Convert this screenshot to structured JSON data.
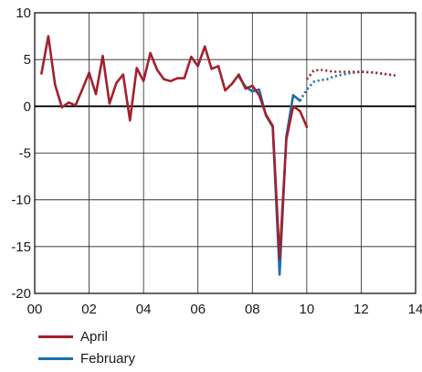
{
  "chart_data": {
    "type": "line",
    "title": "",
    "xlabel": "",
    "ylabel": "",
    "xlim": [
      0,
      14
    ],
    "ylim": [
      -20,
      10
    ],
    "x_ticks": [
      0,
      2,
      4,
      6,
      8,
      10,
      12,
      14
    ],
    "x_tick_labels": [
      "00",
      "02",
      "04",
      "06",
      "08",
      "10",
      "12",
      "14"
    ],
    "y_ticks": [
      10,
      5,
      0,
      -5,
      -10,
      -15,
      -20
    ],
    "y_tick_labels": [
      "10",
      "5",
      "0",
      "-5",
      "-10",
      "-15",
      "-20"
    ],
    "grid": true,
    "legend_position": "bottom-left",
    "series": [
      {
        "name": "April",
        "color": "#a3202d",
        "actual": {
          "x": [
            0.25,
            0.5,
            0.75,
            1.0,
            1.25,
            1.5,
            1.75,
            2.0,
            2.25,
            2.5,
            2.75,
            3.0,
            3.25,
            3.5,
            3.75,
            4.0,
            4.25,
            4.5,
            4.75,
            5.0,
            5.25,
            5.5,
            5.75,
            6.0,
            6.25,
            6.5,
            6.75,
            7.0,
            7.25,
            7.5,
            7.75,
            8.0,
            8.25,
            8.5,
            8.75,
            9.0,
            9.25,
            9.5,
            9.75,
            10.0
          ],
          "y": [
            3.5,
            7.5,
            2.3,
            -0.1,
            0.4,
            0.1,
            1.8,
            3.6,
            1.3,
            5.4,
            0.3,
            2.5,
            3.4,
            -1.5,
            4.1,
            2.7,
            5.7,
            3.9,
            2.9,
            2.7,
            3.0,
            3.0,
            5.3,
            4.3,
            6.4,
            4.0,
            4.3,
            1.7,
            2.4,
            3.4,
            1.9,
            2.2,
            1.2,
            -0.9,
            -2.1,
            -16.3,
            -3.5,
            0.0,
            -0.5,
            -2.2
          ]
        },
        "forecast": {
          "x": [
            10.0,
            10.25,
            10.5,
            10.75,
            11.0,
            11.5,
            12.0,
            12.5,
            13.0,
            13.25
          ],
          "y": [
            2.9,
            3.8,
            3.9,
            3.8,
            3.7,
            3.7,
            3.7,
            3.6,
            3.4,
            3.3
          ]
        }
      },
      {
        "name": "February",
        "color": "#1a6fae",
        "actual": {
          "x": [
            7.5,
            7.75,
            8.0,
            8.25,
            8.5,
            8.75,
            9.0,
            9.25,
            9.5,
            9.75
          ],
          "y": [
            3.2,
            2.1,
            1.6,
            1.8,
            -1.0,
            -2.2,
            -18.0,
            -3.2,
            1.2,
            0.6
          ]
        },
        "forecast": {
          "x": [
            9.75,
            10.0,
            10.25,
            10.5,
            10.75,
            11.0,
            11.5,
            12.0,
            12.5,
            13.0,
            13.25
          ],
          "y": [
            0.6,
            1.8,
            2.6,
            2.8,
            2.9,
            3.2,
            3.5,
            3.7,
            3.6,
            3.4,
            3.3
          ]
        }
      }
    ]
  },
  "legend": {
    "items": [
      {
        "label": "April",
        "color": "#a3202d"
      },
      {
        "label": "February",
        "color": "#1a6fae"
      }
    ]
  }
}
